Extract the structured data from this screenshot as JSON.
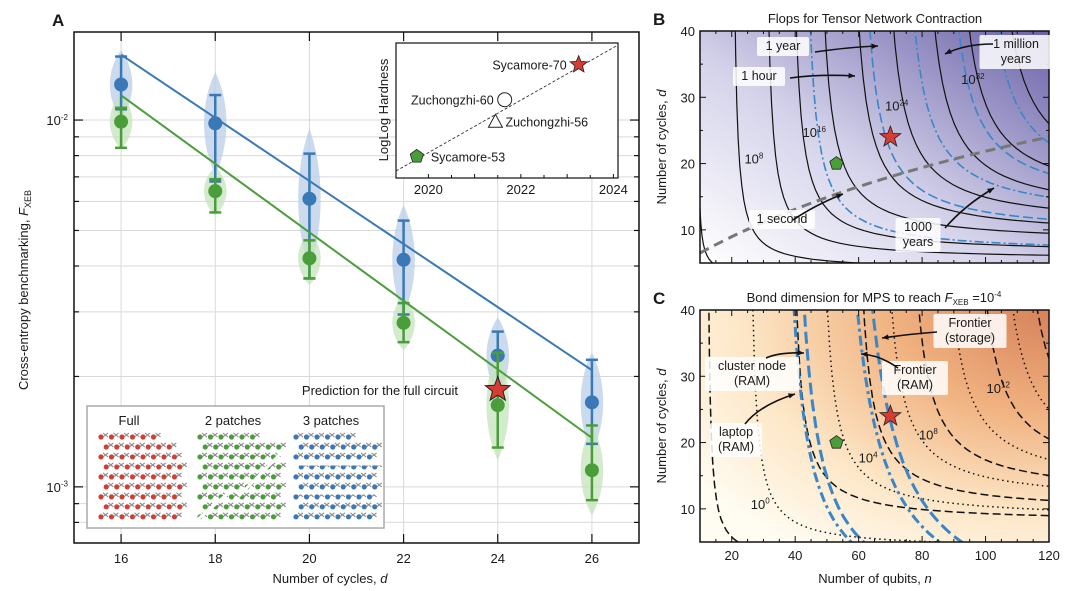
{
  "chart_data": [
    {
      "id": "A",
      "panel_label": "A",
      "type": "scatter",
      "title": "",
      "xlabel": "Number of cycles, ",
      "xlabel_var": "d",
      "ylabel": "Cross-entropy benchmarking, ",
      "ylabel_var": "F",
      "ylabel_sub": "XEB",
      "yscale": "log",
      "xlim": [
        15,
        27
      ],
      "ylim": [
        0.000703,
        0.01738
      ],
      "xticks": [
        16,
        18,
        20,
        22,
        24,
        26
      ],
      "yticks": [
        {
          "value": 0.01,
          "label_base": "10",
          "label_exp": "-2"
        },
        {
          "value": 0.001,
          "label_base": "10",
          "label_exp": "-3"
        }
      ],
      "grid": true,
      "colors": {
        "blue": "#3a78b8",
        "green": "#4a9e3a",
        "red": "#d63c32"
      },
      "series": [
        {
          "name": "3 patches",
          "color": "#3a78b8",
          "x": [
            16,
            18,
            20,
            22,
            24,
            26
          ],
          "y": [
            0.0125,
            0.0098,
            0.0061,
            0.00416,
            0.00228,
            0.0017
          ],
          "err_low": [
            0.0107,
            0.0068,
            0.0037,
            0.00295,
            0.00181,
            0.00131
          ],
          "err_high": [
            0.0149,
            0.0117,
            0.0081,
            0.00532,
            0.00265,
            0.00222
          ],
          "fit": {
            "x": [
              16,
              26
            ],
            "y": [
              0.01507,
              0.00208
            ]
          }
        },
        {
          "name": "2 patches",
          "color": "#4a9e3a",
          "x": [
            16,
            18,
            20,
            22,
            24,
            26
          ],
          "y": [
            0.0099,
            0.0064,
            0.0042,
            0.0028,
            0.00167,
            0.00111
          ],
          "err_low": [
            0.0084,
            0.0056,
            0.0037,
            0.00248,
            0.00128,
            0.00092
          ],
          "err_high": [
            0.0108,
            0.0069,
            0.0047,
            0.00317,
            0.00232,
            0.00147
          ],
          "fit": {
            "x": [
              16,
              26
            ],
            "y": [
              0.01168,
              0.00136
            ]
          }
        }
      ],
      "annotations": [
        {
          "text": "Prediction for the full circuit",
          "x": 24,
          "y": 0.00184,
          "marker": "star",
          "color": "#d63c32"
        }
      ],
      "legend": {
        "placement": "bottom-left",
        "entries": [
          {
            "label": "Full",
            "color": "#d63c32"
          },
          {
            "label": "2 patches",
            "color": "#4a9e3a"
          },
          {
            "label": "3 patches",
            "color": "#3a78b8"
          }
        ]
      },
      "inset": {
        "type": "scatter",
        "ylabel": "LogLog Hardness",
        "xlim": [
          2019.3,
          2024.1
        ],
        "xticks": [
          2020,
          2022,
          2024
        ],
        "trend": "dashed line",
        "points": [
          {
            "label": "Sycamore-53",
            "year": 2019.75,
            "hardness": 0.16,
            "marker": "pentagon",
            "color": "#4a9e3a"
          },
          {
            "label": "Zuchongzhi-60",
            "year": 2021.65,
            "hardness": 0.58,
            "marker": "circle",
            "color": "#ffffff"
          },
          {
            "label": "Zuchongzhi-56",
            "year": 2021.45,
            "hardness": 0.42,
            "marker": "triangle",
            "color": "#ffffff"
          },
          {
            "label": "Sycamore-70",
            "year": 2023.25,
            "hardness": 0.84,
            "marker": "star",
            "color": "#d63c32"
          }
        ]
      }
    },
    {
      "id": "B",
      "panel_label": "B",
      "type": "contour",
      "title": "Flops for Tensor Network Contraction",
      "xlabel": "",
      "ylabel": "Number of cycles, ",
      "ylabel_var": "d",
      "xlim": [
        10,
        120
      ],
      "ylim": [
        5,
        40
      ],
      "yticks": [
        10,
        20,
        30,
        40
      ],
      "contour_labels": [
        {
          "base": "10",
          "exp": "8",
          "x": 27,
          "y": 20
        },
        {
          "base": "10",
          "exp": "16",
          "x": 46,
          "y": 24
        },
        {
          "base": "10",
          "exp": "24",
          "x": 72,
          "y": 28
        },
        {
          "base": "10",
          "exp": "32",
          "x": 96,
          "y": 32
        }
      ],
      "time_labels": [
        "1 second",
        "1 hour",
        "1 year",
        "1000 years",
        "1 million years"
      ],
      "markers": [
        {
          "label": "Sycamore-53",
          "n": 53,
          "d": 20,
          "marker": "pentagon",
          "color": "#4a9e3a"
        },
        {
          "label": "Sycamore-70",
          "n": 70,
          "d": 24,
          "marker": "star",
          "color": "#d63c32"
        }
      ],
      "colormap": {
        "low": "#ffffff",
        "high": "#6a62a8"
      }
    },
    {
      "id": "C",
      "panel_label": "C",
      "type": "contour",
      "title": "Bond dimension for MPS to reach ",
      "title_var": "F",
      "title_sub": "XEB",
      "title_tail": " =10",
      "title_exp": "-4",
      "xlabel": "Number of qubits, ",
      "xlabel_var": "n",
      "ylabel": "Number of cycles, ",
      "ylabel_var": "d",
      "xlim": [
        10,
        120
      ],
      "ylim": [
        5,
        40
      ],
      "xticks": [
        20,
        40,
        60,
        80,
        100,
        120
      ],
      "yticks": [
        10,
        20,
        30,
        40
      ],
      "contour_labels": [
        {
          "base": "10",
          "exp": "0",
          "x": 29,
          "y": 10
        },
        {
          "base": "10",
          "exp": "4",
          "x": 63,
          "y": 17
        },
        {
          "base": "10",
          "exp": "8",
          "x": 82,
          "y": 20.5
        },
        {
          "base": "10",
          "exp": "12",
          "x": 104,
          "y": 27.5
        }
      ],
      "resource_labels": [
        {
          "line1": "laptop",
          "line2": "(RAM)"
        },
        {
          "line1": "cluster node",
          "line2": "(RAM)"
        },
        {
          "line1": "Frontier",
          "line2": "(RAM)"
        },
        {
          "line1": "Frontier",
          "line2": "(storage)"
        }
      ],
      "markers": [
        {
          "label": "Sycamore-53",
          "n": 53,
          "d": 20,
          "marker": "pentagon",
          "color": "#4a9e3a"
        },
        {
          "label": "Sycamore-70",
          "n": 70,
          "d": 24,
          "marker": "star",
          "color": "#d63c32"
        }
      ],
      "colormap": {
        "low": "#fffcef",
        "high": "#e58a55"
      }
    }
  ]
}
